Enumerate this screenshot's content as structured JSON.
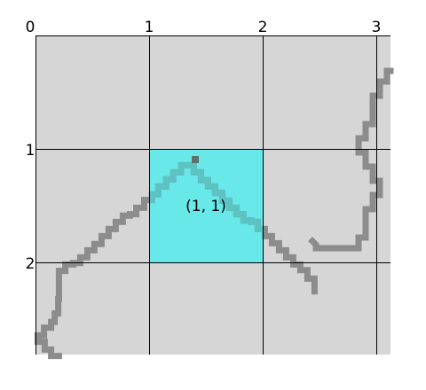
{
  "grid": {
    "col_labels": [
      "0",
      "1",
      "2",
      "3"
    ],
    "row_labels": [
      "1",
      "2"
    ],
    "highlight_cell": {
      "col": 1,
      "row": 1,
      "label": "(1, 1)"
    }
  },
  "colors": {
    "background": "#d6d6d6",
    "grid_line": "#000000",
    "highlight": "#68e8e8",
    "path": "#8c8c8c",
    "path_in_highlight": "#5cc2c2",
    "path_marker": "#5f7070"
  },
  "paths": [
    {
      "name": "tile-boundary-curve-left-center",
      "points": [
        [
          3.3,
          45.2
        ],
        [
          2.2,
          45.2
        ],
        [
          2.2,
          44.3
        ],
        [
          1.3,
          44.3
        ],
        [
          1.3,
          43.2
        ],
        [
          0.3,
          43.2
        ],
        [
          0.3,
          42.3
        ],
        [
          1.2,
          42.3
        ],
        [
          1.2,
          41.2
        ],
        [
          2.2,
          41.2
        ],
        [
          2.2,
          40.4
        ],
        [
          2.7,
          40.4
        ],
        [
          2.7,
          39.2
        ],
        [
          3.2,
          39.2
        ],
        [
          3.2,
          37.2
        ],
        [
          3.3,
          37.2
        ],
        [
          3.3,
          36.3
        ],
        [
          3.3,
          35.3
        ],
        [
          3.3,
          34.3
        ],
        [
          3.3,
          33.2
        ],
        [
          4.2,
          33.2
        ],
        [
          4.2,
          32.3
        ],
        [
          5.3,
          32.3
        ],
        [
          5.3,
          32.1
        ],
        [
          6.3,
          32.1
        ],
        [
          6.3,
          31.3
        ],
        [
          7.3,
          31.3
        ],
        [
          7.3,
          30.3
        ],
        [
          8.3,
          30.3
        ],
        [
          8.3,
          29.4
        ],
        [
          9.3,
          29.4
        ],
        [
          9.3,
          28.3
        ],
        [
          10.3,
          28.3
        ],
        [
          10.3,
          27.3
        ],
        [
          11.3,
          27.3
        ],
        [
          11.3,
          26.3
        ],
        [
          12.3,
          26.3
        ],
        [
          12.3,
          25.4
        ],
        [
          13.3,
          25.4
        ],
        [
          13.3,
          25.2
        ],
        [
          14.2,
          25.2
        ],
        [
          14.2,
          24.3
        ],
        [
          15.3,
          24.3
        ],
        [
          15.3,
          23.2
        ],
        [
          16.4,
          23.2
        ],
        [
          16.4,
          22.4
        ],
        [
          17.3,
          22.4
        ],
        [
          17.3,
          21.3
        ],
        [
          18.4,
          21.3
        ],
        [
          18.4,
          20.3
        ],
        [
          19.4,
          20.3
        ],
        [
          19.4,
          19.3
        ],
        [
          20.5,
          19.3
        ],
        [
          20.5,
          18.3
        ],
        [
          21.3,
          18.3
        ],
        [
          22.3,
          18.3
        ],
        [
          22.3,
          19.3
        ],
        [
          23.3,
          19.3
        ],
        [
          23.3,
          20.4
        ],
        [
          24.3,
          20.4
        ],
        [
          24.3,
          21.3
        ],
        [
          25.3,
          21.3
        ],
        [
          25.3,
          22.2
        ],
        [
          26.3,
          22.2
        ],
        [
          26.3,
          23.3
        ],
        [
          27.3,
          23.3
        ],
        [
          27.3,
          24.3
        ],
        [
          28.3,
          24.3
        ],
        [
          28.3,
          25.2
        ],
        [
          29.3,
          25.2
        ],
        [
          29.3,
          26.1
        ],
        [
          30.4,
          26.1
        ],
        [
          30.4,
          26.3
        ],
        [
          31.3,
          26.3
        ],
        [
          31.3,
          27.3
        ],
        [
          32.3,
          27.3
        ],
        [
          32.3,
          28.3
        ],
        [
          33.3,
          28.3
        ],
        [
          33.3,
          29.3
        ],
        [
          34.3,
          29.3
        ],
        [
          34.3,
          30.3
        ],
        [
          35.3,
          30.3
        ],
        [
          35.3,
          31.3
        ],
        [
          36.3,
          31.3
        ],
        [
          36.3,
          32.3
        ],
        [
          37.3,
          32.3
        ],
        [
          37.3,
          33.1
        ],
        [
          38.3,
          33.1
        ],
        [
          38.3,
          34.3
        ],
        [
          39.3,
          34.3
        ],
        [
          39.3,
          36.1
        ]
      ]
    },
    {
      "name": "tile-boundary-curve-right",
      "points": [
        [
          50,
          5
        ],
        [
          49.5,
          5
        ],
        [
          49.5,
          6.5
        ],
        [
          48.5,
          6.5
        ],
        [
          48.5,
          8.5
        ],
        [
          47.5,
          8.5
        ],
        [
          47.5,
          10.5
        ],
        [
          47.5,
          12.5
        ],
        [
          46.5,
          12.5
        ],
        [
          46.5,
          14.5
        ],
        [
          45.5,
          14.5
        ],
        [
          45.5,
          16.5
        ],
        [
          46.5,
          16.5
        ],
        [
          46.5,
          18.5
        ],
        [
          47.5,
          18.5
        ],
        [
          47.5,
          20.5
        ],
        [
          48.5,
          20.5
        ],
        [
          48.5,
          22.5
        ],
        [
          47.5,
          22.5
        ],
        [
          47.5,
          24.5
        ],
        [
          46.5,
          24.5
        ],
        [
          46.5,
          26.5
        ],
        [
          46.5,
          28.5
        ],
        [
          45.5,
          28.5
        ],
        [
          45.5,
          30
        ],
        [
          43.5,
          30
        ],
        [
          41.5,
          30
        ],
        [
          39.5,
          30
        ],
        [
          39.5,
          29.5
        ],
        [
          39,
          29
        ]
      ]
    }
  ]
}
